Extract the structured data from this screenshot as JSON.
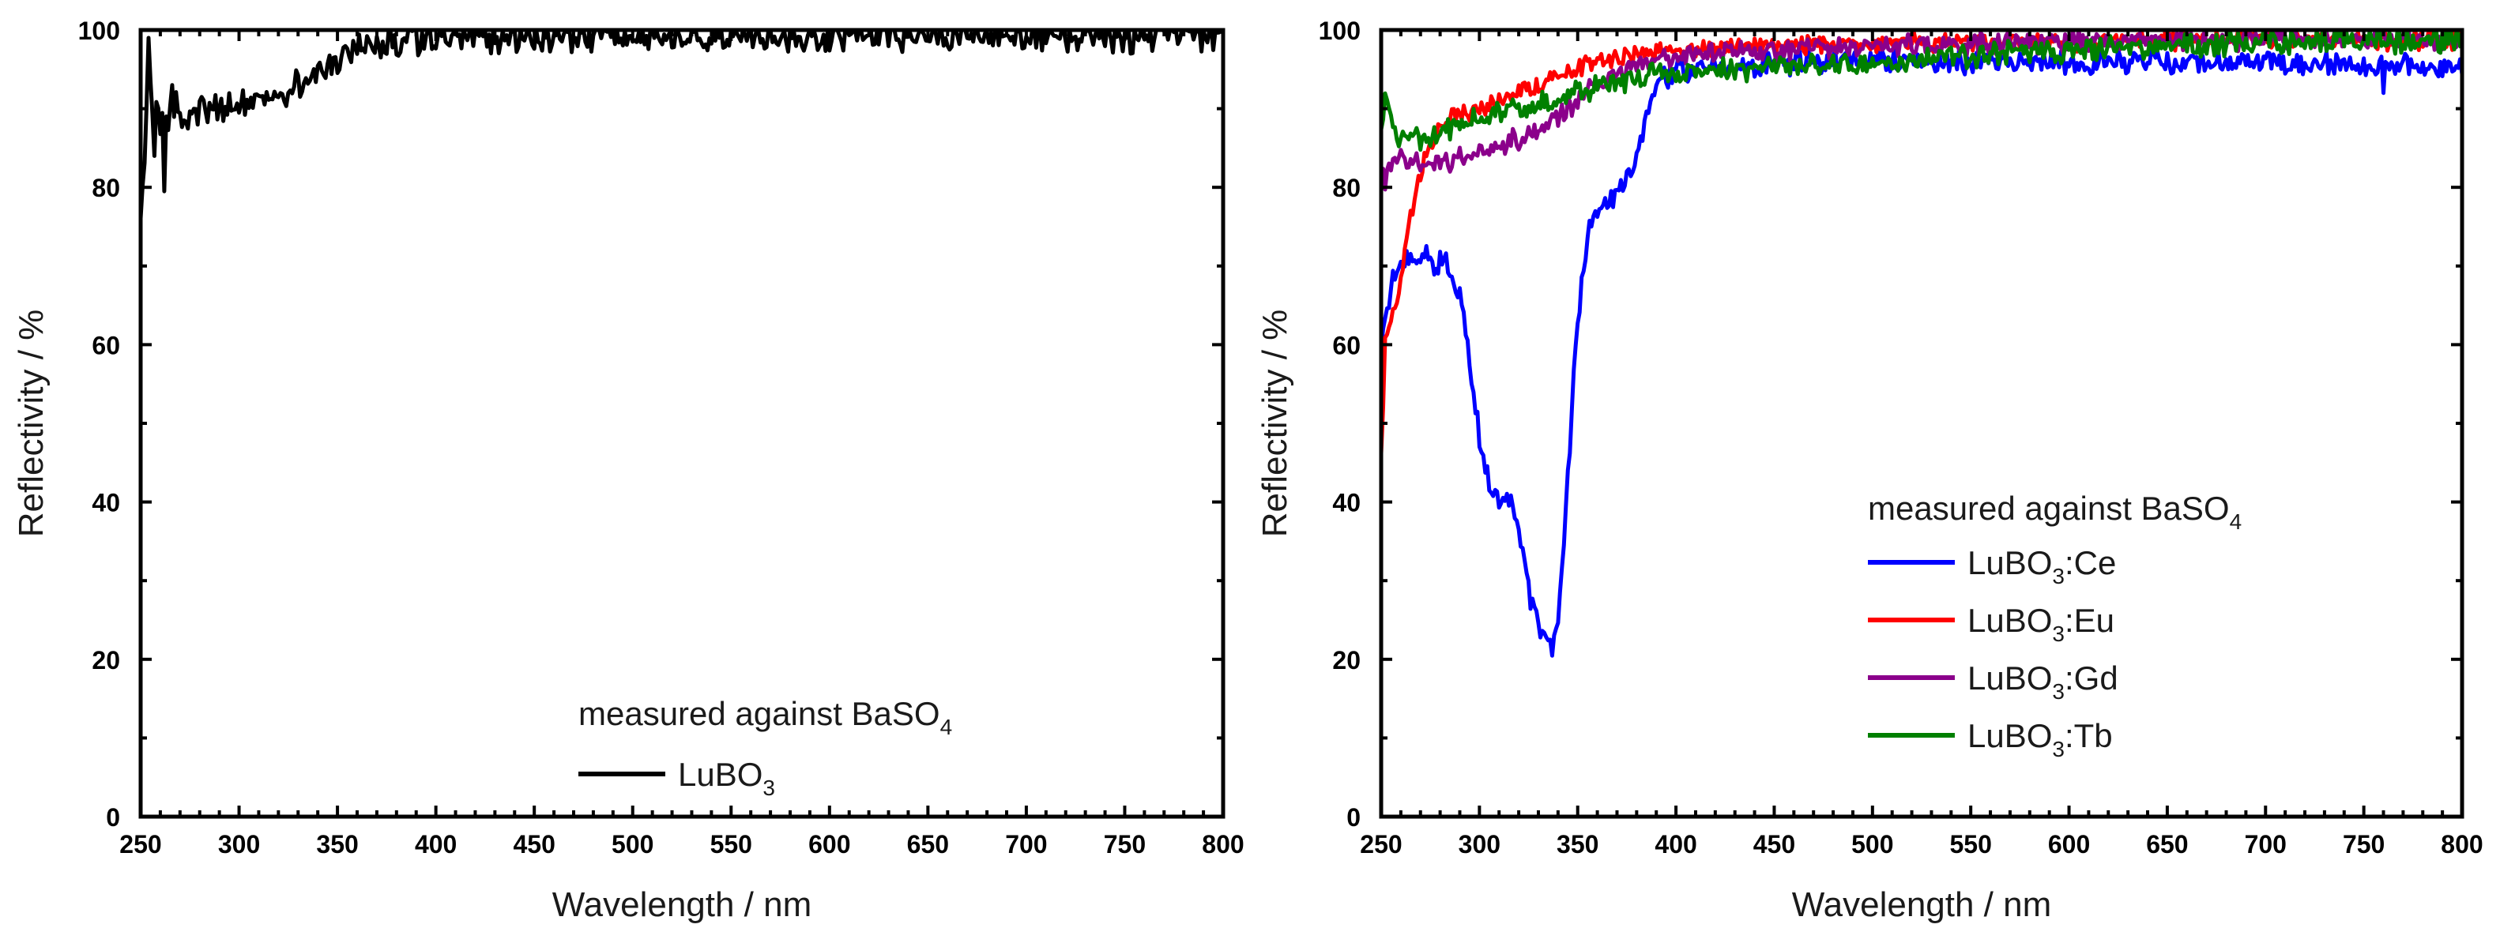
{
  "chart_data": [
    {
      "type": "line",
      "panel": "left",
      "xlabel": "Wavelength / nm",
      "ylabel": "Reflectivity / %",
      "xlim": [
        250,
        800
      ],
      "ylim": [
        0,
        100
      ],
      "x_ticks": [
        "250",
        "300",
        "350",
        "400",
        "450",
        "500",
        "550",
        "600",
        "650",
        "700",
        "750",
        "800"
      ],
      "y_ticks": [
        "0",
        "20",
        "40",
        "60",
        "80",
        "100"
      ],
      "legend": {
        "title": {
          "main": "measured against BaSO",
          "sub": "4"
        },
        "placement": "bottom-right",
        "entries": [
          {
            "main": "LuBO",
            "sub": "3",
            "rest": ""
          }
        ]
      },
      "series": [
        {
          "name": "LuBO3",
          "color": "#000000",
          "noise_start": 1.5,
          "noise_end": 1.6,
          "points": [
            [
              250,
              76
            ],
            [
              252,
              84
            ],
            [
              254,
              96
            ],
            [
              256,
              88
            ],
            [
              258,
              91
            ],
            [
              260,
              88
            ],
            [
              262,
              90
            ],
            [
              264,
              86
            ],
            [
              266,
              91
            ],
            [
              270,
              89
            ],
            [
              280,
              90
            ],
            [
              290,
              90
            ],
            [
              300,
              90.5
            ],
            [
              310,
              91
            ],
            [
              320,
              92
            ],
            [
              330,
              93
            ],
            [
              340,
              94.5
            ],
            [
              350,
              96
            ],
            [
              360,
              97.5
            ],
            [
              370,
              98.3
            ],
            [
              380,
              98.7
            ],
            [
              400,
              98.9
            ],
            [
              450,
              99
            ],
            [
              500,
              99.2
            ],
            [
              550,
              99.2
            ],
            [
              600,
              99.3
            ],
            [
              650,
              99.4
            ],
            [
              700,
              99.4
            ],
            [
              750,
              99.3
            ],
            [
              800,
              99.2
            ]
          ],
          "features": [
            [
              254,
              99
            ],
            [
              257,
              84
            ],
            [
              262,
              79.5
            ],
            [
              266,
              93
            ]
          ]
        }
      ]
    },
    {
      "type": "line",
      "panel": "right",
      "xlabel": "Wavelength / nm",
      "ylabel": "Reflectivity / %",
      "xlim": [
        250,
        800
      ],
      "ylim": [
        0,
        100
      ],
      "x_ticks": [
        "250",
        "300",
        "350",
        "400",
        "450",
        "500",
        "550",
        "600",
        "650",
        "700",
        "750",
        "800"
      ],
      "y_ticks": [
        "0",
        "20",
        "40",
        "60",
        "80",
        "100"
      ],
      "legend": {
        "title": {
          "main": "measured against BaSO",
          "sub": "4"
        },
        "placement": "center-right",
        "entries": [
          {
            "main": "LuBO",
            "sub": "3",
            "rest": ":Ce"
          },
          {
            "main": "LuBO",
            "sub": "3",
            "rest": ":Eu"
          },
          {
            "main": "LuBO",
            "sub": "3",
            "rest": ":Gd"
          },
          {
            "main": "LuBO",
            "sub": "3",
            "rest": ":Tb"
          }
        ]
      },
      "series": [
        {
          "name": "LuBO3:Ce",
          "color": "#0000ff",
          "noise_start": 1.2,
          "noise_end": 1.2,
          "points": [
            [
              250,
              60
            ],
            [
              254,
              66
            ],
            [
              258,
              70
            ],
            [
              262,
              71
            ],
            [
              266,
              70
            ],
            [
              270,
              71
            ],
            [
              274,
              72
            ],
            [
              278,
              70
            ],
            [
              282,
              70.5
            ],
            [
              286,
              69
            ],
            [
              290,
              66
            ],
            [
              294,
              60
            ],
            [
              298,
              52
            ],
            [
              302,
              46
            ],
            [
              306,
              41
            ],
            [
              310,
              40.5
            ],
            [
              314,
              41.5
            ],
            [
              318,
              38
            ],
            [
              322,
              33
            ],
            [
              326,
              28
            ],
            [
              330,
              24
            ],
            [
              334,
              22
            ],
            [
              337,
              21.8
            ],
            [
              340,
              24
            ],
            [
              344,
              38
            ],
            [
              348,
              56
            ],
            [
              352,
              68
            ],
            [
              356,
              75
            ],
            [
              360,
              77
            ],
            [
              366,
              78
            ],
            [
              372,
              80
            ],
            [
              378,
              82
            ],
            [
              382,
              86
            ],
            [
              386,
              90
            ],
            [
              390,
              93
            ],
            [
              400,
              95
            ],
            [
              420,
              95.5
            ],
            [
              450,
              95.8
            ],
            [
              500,
              96
            ],
            [
              550,
              96
            ],
            [
              600,
              96
            ],
            [
              650,
              96
            ],
            [
              700,
              95.8
            ],
            [
              750,
              95.5
            ],
            [
              800,
              95
            ]
          ],
          "features": [
            [
              300,
              47
            ],
            [
              760,
              92
            ]
          ]
        },
        {
          "name": "LuBO3:Eu",
          "color": "#ff0000",
          "noise_start": 1.0,
          "noise_end": 1.0,
          "points": [
            [
              250,
              45
            ],
            [
              252,
              60
            ],
            [
              256,
              64
            ],
            [
              260,
              68
            ],
            [
              264,
              75
            ],
            [
              268,
              80
            ],
            [
              272,
              84
            ],
            [
              276,
              86
            ],
            [
              280,
              88
            ],
            [
              290,
              89
            ],
            [
              300,
              90
            ],
            [
              310,
              91
            ],
            [
              320,
              92
            ],
            [
              330,
              93
            ],
            [
              340,
              94
            ],
            [
              350,
              95
            ],
            [
              360,
              96
            ],
            [
              380,
              97
            ],
            [
              400,
              97.5
            ],
            [
              450,
              98
            ],
            [
              500,
              98.3
            ],
            [
              550,
              98.5
            ],
            [
              600,
              98.6
            ],
            [
              650,
              98.7
            ],
            [
              700,
              98.8
            ],
            [
              750,
              98.8
            ],
            [
              800,
              98.8
            ]
          ],
          "features": []
        },
        {
          "name": "LuBO3:Gd",
          "color": "#8b008b",
          "noise_start": 1.2,
          "noise_end": 1.0,
          "points": [
            [
              250,
              80
            ],
            [
              255,
              83
            ],
            [
              260,
              84
            ],
            [
              270,
              83
            ],
            [
              280,
              83
            ],
            [
              290,
              84
            ],
            [
              300,
              84.5
            ],
            [
              310,
              85
            ],
            [
              320,
              86
            ],
            [
              330,
              87.5
            ],
            [
              340,
              89
            ],
            [
              350,
              91
            ],
            [
              360,
              93
            ],
            [
              370,
              94.5
            ],
            [
              380,
              95.5
            ],
            [
              400,
              96.5
            ],
            [
              450,
              97.5
            ],
            [
              500,
              98
            ],
            [
              550,
              98.2
            ],
            [
              600,
              98.5
            ],
            [
              650,
              98.7
            ],
            [
              700,
              98.8
            ],
            [
              750,
              98.8
            ],
            [
              800,
              98.8
            ]
          ],
          "features": []
        },
        {
          "name": "LuBO3:Tb",
          "color": "#008000",
          "noise_start": 1.1,
          "noise_end": 1.3,
          "points": [
            [
              250,
              87
            ],
            [
              252,
              92
            ],
            [
              256,
              87
            ],
            [
              260,
              86
            ],
            [
              270,
              86
            ],
            [
              280,
              87
            ],
            [
              290,
              88
            ],
            [
              300,
              89
            ],
            [
              310,
              89.5
            ],
            [
              320,
              90
            ],
            [
              330,
              90.5
            ],
            [
              340,
              91
            ],
            [
              350,
              92
            ],
            [
              360,
              93
            ],
            [
              370,
              93.5
            ],
            [
              380,
              94
            ],
            [
              400,
              94.5
            ],
            [
              450,
              95.3
            ],
            [
              500,
              96
            ],
            [
              550,
              96.8
            ],
            [
              600,
              97.5
            ],
            [
              650,
              98
            ],
            [
              700,
              98.5
            ],
            [
              750,
              98.8
            ],
            [
              800,
              99
            ]
          ],
          "features": []
        }
      ]
    }
  ]
}
